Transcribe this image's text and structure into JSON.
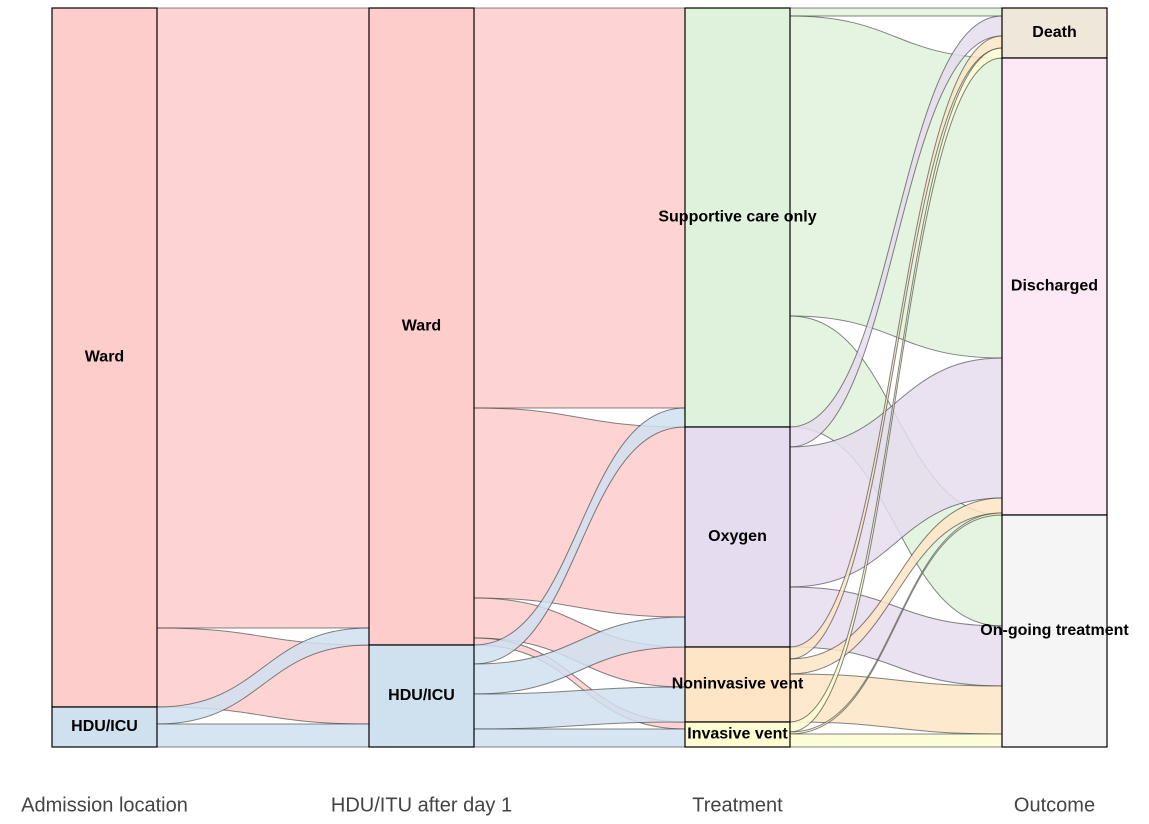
{
  "chart_data": {
    "type": "alluvial",
    "axes": [
      {
        "label": "Admission location",
        "nodes": [
          {
            "label": "Ward",
            "value": 699,
            "color": "#fdcdcb"
          },
          {
            "label": "HDU/ICU",
            "value": 40,
            "color": "#cfe0ee"
          }
        ]
      },
      {
        "label": "HDU/ITU after day 1",
        "nodes": [
          {
            "label": "Ward",
            "value": 637,
            "color": "#fdcdcb"
          },
          {
            "label": "HDU/ICU",
            "value": 102,
            "color": "#cfe0ee"
          }
        ]
      },
      {
        "label": "Treatment",
        "nodes": [
          {
            "label": "Supportive care only",
            "value": 419,
            "color": "#dff2dc"
          },
          {
            "label": "Oxygen",
            "value": 220,
            "color": "#e6dcef"
          },
          {
            "label": "Noninvasive vent",
            "value": 75,
            "color": "#fde5c6"
          },
          {
            "label": "Invasive vent",
            "value": 25,
            "color": "#fdfbd1"
          }
        ]
      },
      {
        "label": "Outcome",
        "nodes": [
          {
            "label": "Death",
            "value": 50,
            "color": "#efe7da"
          },
          {
            "label": "Discharged",
            "value": 457,
            "color": "#fde9f5"
          },
          {
            "label": "On-going treatment",
            "value": 232,
            "color": "#f5f5f5"
          }
        ]
      }
    ],
    "flows": [
      [
        {
          "from": 0,
          "to": 0,
          "value": 620
        },
        {
          "from": 0,
          "to": 1,
          "value": 79
        },
        {
          "from": 1,
          "to": 0,
          "value": 17
        },
        {
          "from": 1,
          "to": 1,
          "value": 23
        }
      ],
      [
        {
          "from": 0,
          "to": 0,
          "value": 400
        },
        {
          "from": 0,
          "to": 1,
          "value": 190
        },
        {
          "from": 0,
          "to": 2,
          "value": 40
        },
        {
          "from": 0,
          "to": 3,
          "value": 7
        },
        {
          "from": 1,
          "to": 0,
          "value": 19
        },
        {
          "from": 1,
          "to": 1,
          "value": 30
        },
        {
          "from": 1,
          "to": 2,
          "value": 35
        },
        {
          "from": 1,
          "to": 3,
          "value": 18
        }
      ],
      [
        {
          "from": 0,
          "to": 0,
          "value": 8
        },
        {
          "from": 0,
          "to": 1,
          "value": 300
        },
        {
          "from": 0,
          "to": 2,
          "value": 111
        },
        {
          "from": 1,
          "to": 0,
          "value": 20
        },
        {
          "from": 1,
          "to": 1,
          "value": 140
        },
        {
          "from": 1,
          "to": 2,
          "value": 60
        },
        {
          "from": 2,
          "to": 0,
          "value": 12
        },
        {
          "from": 2,
          "to": 1,
          "value": 15
        },
        {
          "from": 2,
          "to": 2,
          "value": 48
        },
        {
          "from": 3,
          "to": 0,
          "value": 10
        },
        {
          "from": 3,
          "to": 1,
          "value": 2
        },
        {
          "from": 3,
          "to": 2,
          "value": 13
        }
      ]
    ]
  }
}
